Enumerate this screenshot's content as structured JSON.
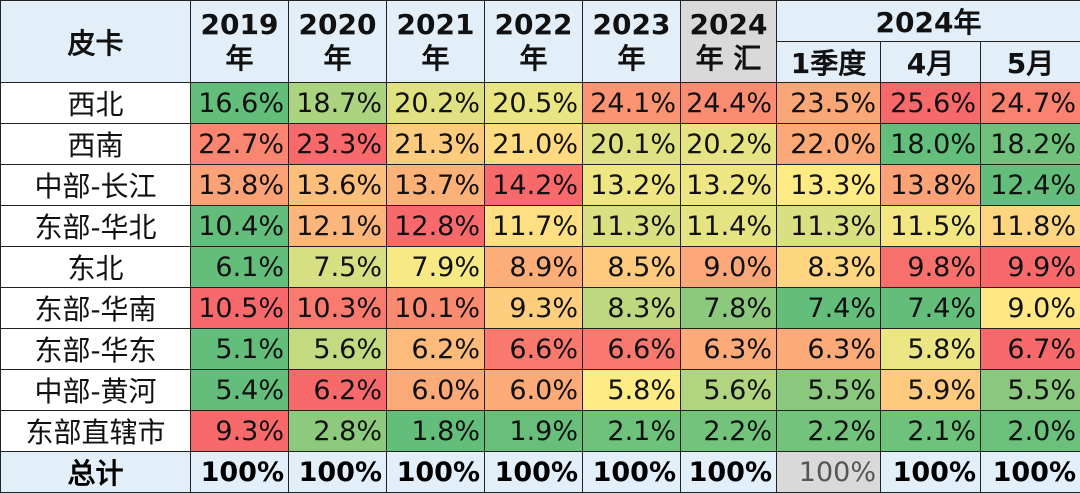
{
  "chart_data": {
    "type": "table",
    "corner_label": "皮卡",
    "columns": [
      {
        "top": "2019",
        "bottom": "年"
      },
      {
        "top": "2020",
        "bottom": "年"
      },
      {
        "top": "2021",
        "bottom": "年"
      },
      {
        "top": "2022",
        "bottom": "年"
      },
      {
        "top": "2023",
        "bottom": "年"
      },
      {
        "top": "2024",
        "bottom": "年 汇"
      }
    ],
    "group_header": "2024年",
    "sub_columns": [
      "1季度",
      "4月",
      "5月"
    ],
    "rows": [
      {
        "label": "西北",
        "values": [
          "16.6%",
          "18.7%",
          "20.2%",
          "20.5%",
          "24.1%",
          "24.4%",
          "23.5%",
          "25.6%",
          "24.7%"
        ]
      },
      {
        "label": "西南",
        "values": [
          "22.7%",
          "23.3%",
          "21.3%",
          "21.0%",
          "20.1%",
          "20.2%",
          "22.0%",
          "18.0%",
          "18.2%"
        ]
      },
      {
        "label": "中部-长江",
        "values": [
          "13.8%",
          "13.6%",
          "13.7%",
          "14.2%",
          "13.2%",
          "13.2%",
          "13.3%",
          "13.8%",
          "12.4%"
        ]
      },
      {
        "label": "东部-华北",
        "values": [
          "10.4%",
          "12.1%",
          "12.8%",
          "11.7%",
          "11.3%",
          "11.4%",
          "11.3%",
          "11.5%",
          "11.8%"
        ]
      },
      {
        "label": "东北",
        "values": [
          "6.1%",
          "7.5%",
          "7.9%",
          "8.9%",
          "8.5%",
          "9.0%",
          "8.3%",
          "9.8%",
          "9.9%"
        ]
      },
      {
        "label": "东部-华南",
        "values": [
          "10.5%",
          "10.3%",
          "10.1%",
          "9.3%",
          "8.3%",
          "7.8%",
          "7.4%",
          "7.4%",
          "9.0%"
        ]
      },
      {
        "label": "东部-华东",
        "values": [
          "5.1%",
          "5.6%",
          "6.2%",
          "6.6%",
          "6.6%",
          "6.3%",
          "6.3%",
          "5.8%",
          "6.7%"
        ]
      },
      {
        "label": "中部-黄河",
        "values": [
          "5.4%",
          "6.2%",
          "6.0%",
          "6.0%",
          "5.8%",
          "5.6%",
          "5.5%",
          "5.9%",
          "5.5%"
        ]
      },
      {
        "label": "东部直辖市",
        "values": [
          "9.3%",
          "2.8%",
          "1.8%",
          "1.9%",
          "2.1%",
          "2.2%",
          "2.2%",
          "2.1%",
          "2.0%"
        ]
      }
    ],
    "total": {
      "label": "总计",
      "values": [
        "100%",
        "100%",
        "100%",
        "100%",
        "100%",
        "100%",
        "100%",
        "100%",
        "100%"
      ]
    },
    "color_scale": {
      "low": "#63be7b",
      "mid": "#ffeb84",
      "high": "#f8696b",
      "direction": "per-row: lowest green, middle yellow, highest red"
    }
  }
}
